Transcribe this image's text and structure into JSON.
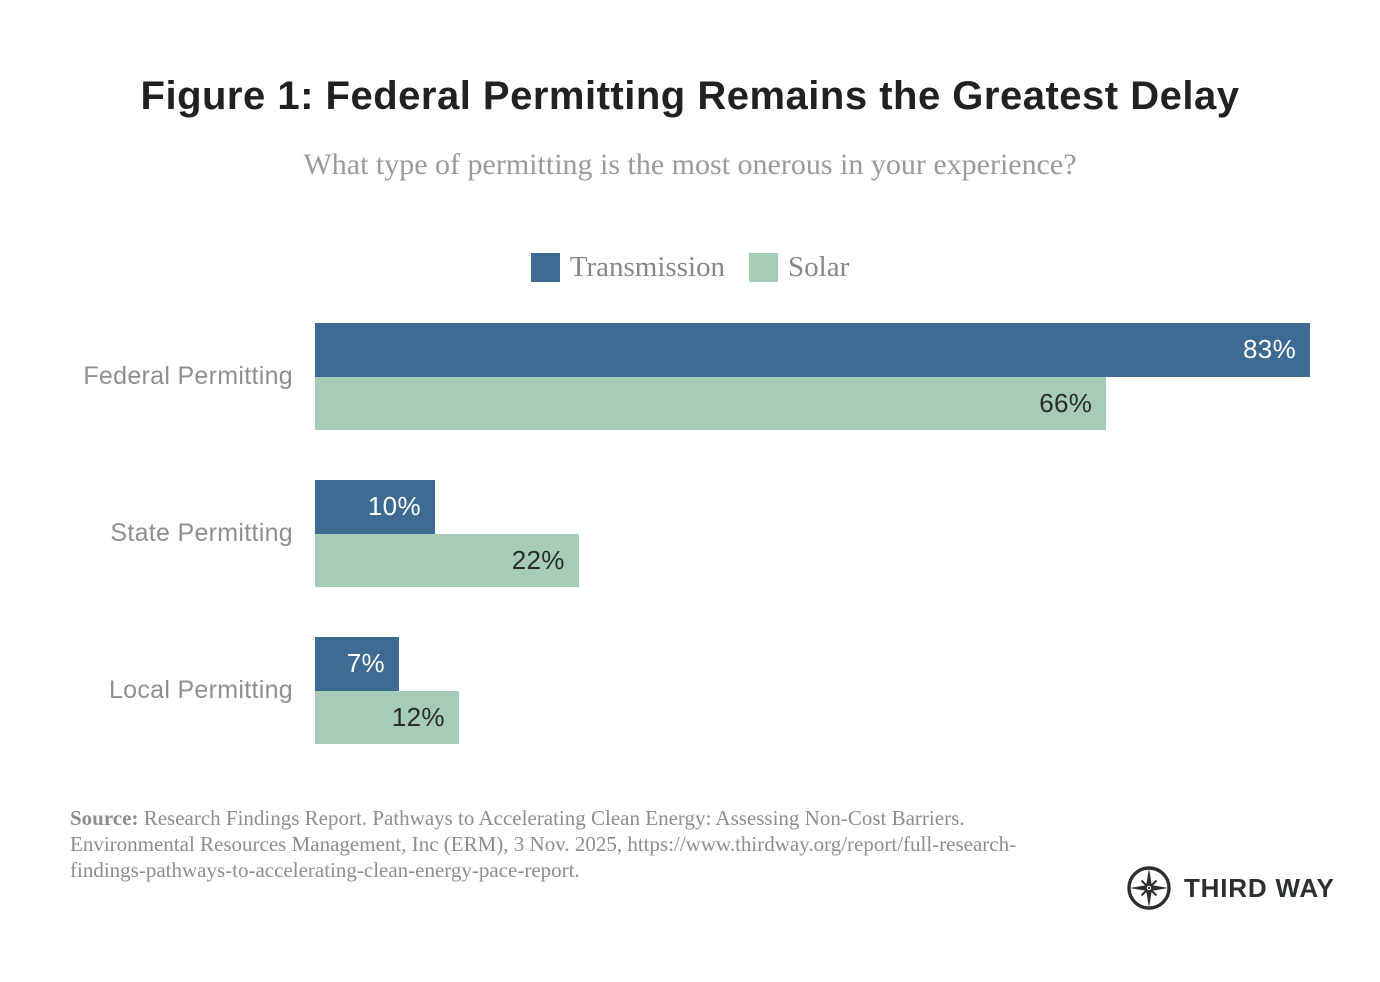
{
  "title": "Figure 1: Federal Permitting Remains the Greatest Delay",
  "subtitle": "What type of permitting is the most onerous in your experience?",
  "legend": {
    "items": [
      {
        "label": "Transmission",
        "color": "#3d6b93"
      },
      {
        "label": "Solar",
        "color": "#a6ccb8"
      }
    ]
  },
  "chart_data": {
    "type": "bar",
    "orientation": "horizontal",
    "title": "Figure 1: Federal Permitting Remains the Greatest Delay",
    "subtitle": "What type of permitting is the most onerous in your experience?",
    "categories": [
      "Federal Permitting",
      "State Permitting",
      "Local Permitting"
    ],
    "series": [
      {
        "name": "Transmission",
        "color": "#3d6b93",
        "label_color": "#ffffff",
        "values": [
          83,
          10,
          7
        ]
      },
      {
        "name": "Solar",
        "color": "#a6ccb8",
        "label_color": "#2b2b2b",
        "values": [
          66,
          22,
          12
        ]
      }
    ],
    "value_suffix": "%",
    "xlim": [
      0,
      83
    ],
    "grid": false,
    "legend_position": "top",
    "data_labels": "inside-end"
  },
  "source": {
    "label": "Source:",
    "text": " Research Findings Report. Pathways to Accelerating Clean Energy: Assessing Non-Cost Barriers. Environmental Resources Management, Inc (ERM), 3 Nov. 2025, https://www.thirdway.org/report/full-research-findings-pathways-to-accelerating-clean-energy-pace-report."
  },
  "logo": {
    "name": "third-way-logo",
    "text": "THIRD WAY"
  }
}
